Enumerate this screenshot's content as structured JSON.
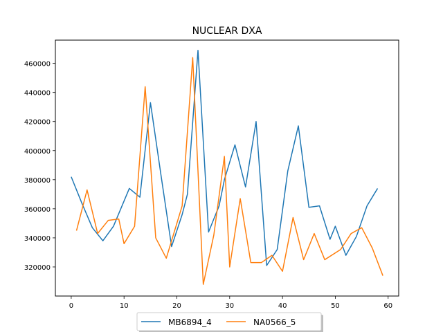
{
  "chart_data": {
    "type": "line",
    "title": "NUCLEAR DXA",
    "xlabel": "",
    "ylabel": "",
    "xlim": [
      -3,
      62
    ],
    "ylim": [
      300000,
      476000
    ],
    "x_ticks": [
      0,
      10,
      20,
      30,
      40,
      50,
      60
    ],
    "x_tick_labels": [
      "0",
      "10",
      "20",
      "30",
      "40",
      "50",
      "60"
    ],
    "y_ticks": [
      320000,
      340000,
      360000,
      380000,
      400000,
      420000,
      440000,
      460000
    ],
    "y_tick_labels": [
      "320000",
      "340000",
      "360000",
      "380000",
      "400000",
      "420000",
      "440000",
      "460000"
    ],
    "grid": false,
    "legend_position": "bottom-center, below plot",
    "series": [
      {
        "name": "MB6894_4",
        "color": "#1f77b4",
        "x": [
          0,
          2,
          4,
          6,
          8,
          11,
          13,
          15,
          17,
          19,
          21,
          22,
          24,
          26,
          28,
          29,
          31,
          33,
          35,
          37,
          39,
          41,
          43,
          45,
          47,
          49,
          50,
          52,
          54,
          56,
          58
        ],
        "y": [
          382000,
          364000,
          347000,
          338000,
          348000,
          374000,
          368000,
          433000,
          383000,
          334000,
          356000,
          370000,
          469000,
          344000,
          362000,
          380000,
          404000,
          375000,
          420000,
          321000,
          332000,
          386000,
          417000,
          361000,
          362000,
          339000,
          348000,
          328000,
          341000,
          362000,
          374000
        ]
      },
      {
        "name": "NA0566_5",
        "color": "#ff7f0e",
        "x": [
          1,
          3,
          5,
          7,
          9,
          10,
          12,
          14,
          16,
          18,
          20,
          21,
          23,
          25,
          27,
          29,
          30,
          32,
          34,
          36,
          38,
          40,
          42,
          44,
          46,
          48,
          51,
          53,
          55,
          57,
          59
        ],
        "y": [
          345000,
          373000,
          343000,
          352000,
          353000,
          336000,
          348000,
          444000,
          340000,
          326000,
          350000,
          362000,
          464000,
          308000,
          342000,
          396000,
          320000,
          367000,
          323000,
          323000,
          328000,
          317000,
          354000,
          325000,
          343000,
          325000,
          332000,
          343000,
          347000,
          333000,
          314000
        ]
      }
    ]
  }
}
